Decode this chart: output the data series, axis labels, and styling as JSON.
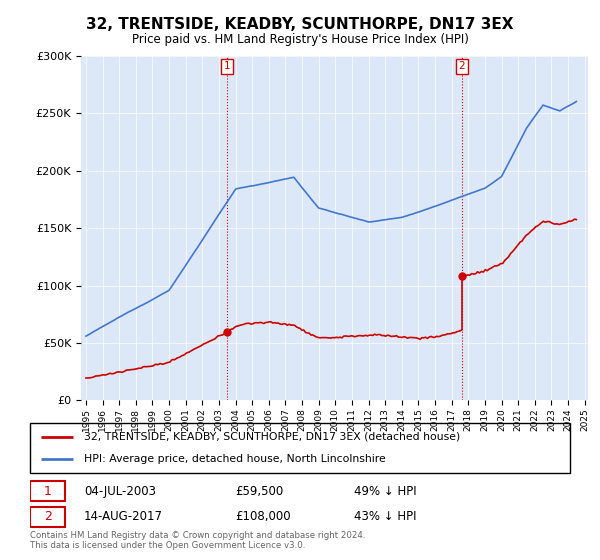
{
  "title": "32, TRENTSIDE, KEADBY, SCUNTHORPE, DN17 3EX",
  "subtitle": "Price paid vs. HM Land Registry's House Price Index (HPI)",
  "legend_line1": "32, TRENTSIDE, KEADBY, SCUNTHORPE, DN17 3EX (detached house)",
  "legend_line2": "HPI: Average price, detached house, North Lincolnshire",
  "sale1_date": "04-JUL-2003",
  "sale1_price": "£59,500",
  "sale1_hpi": "49% ↓ HPI",
  "sale2_date": "14-AUG-2017",
  "sale2_price": "£108,000",
  "sale2_hpi": "43% ↓ HPI",
  "footer1": "Contains HM Land Registry data © Crown copyright and database right 2024.",
  "footer2": "This data is licensed under the Open Government Licence v3.0.",
  "ylim_max": 300000,
  "plot_bg_color": "#dce8f8",
  "red_color": "#cc0000",
  "blue_color": "#4477cc",
  "sale1_year": 2003.5,
  "sale2_year": 2017.62,
  "sale1_price_val": 59500,
  "sale2_price_val": 108000
}
